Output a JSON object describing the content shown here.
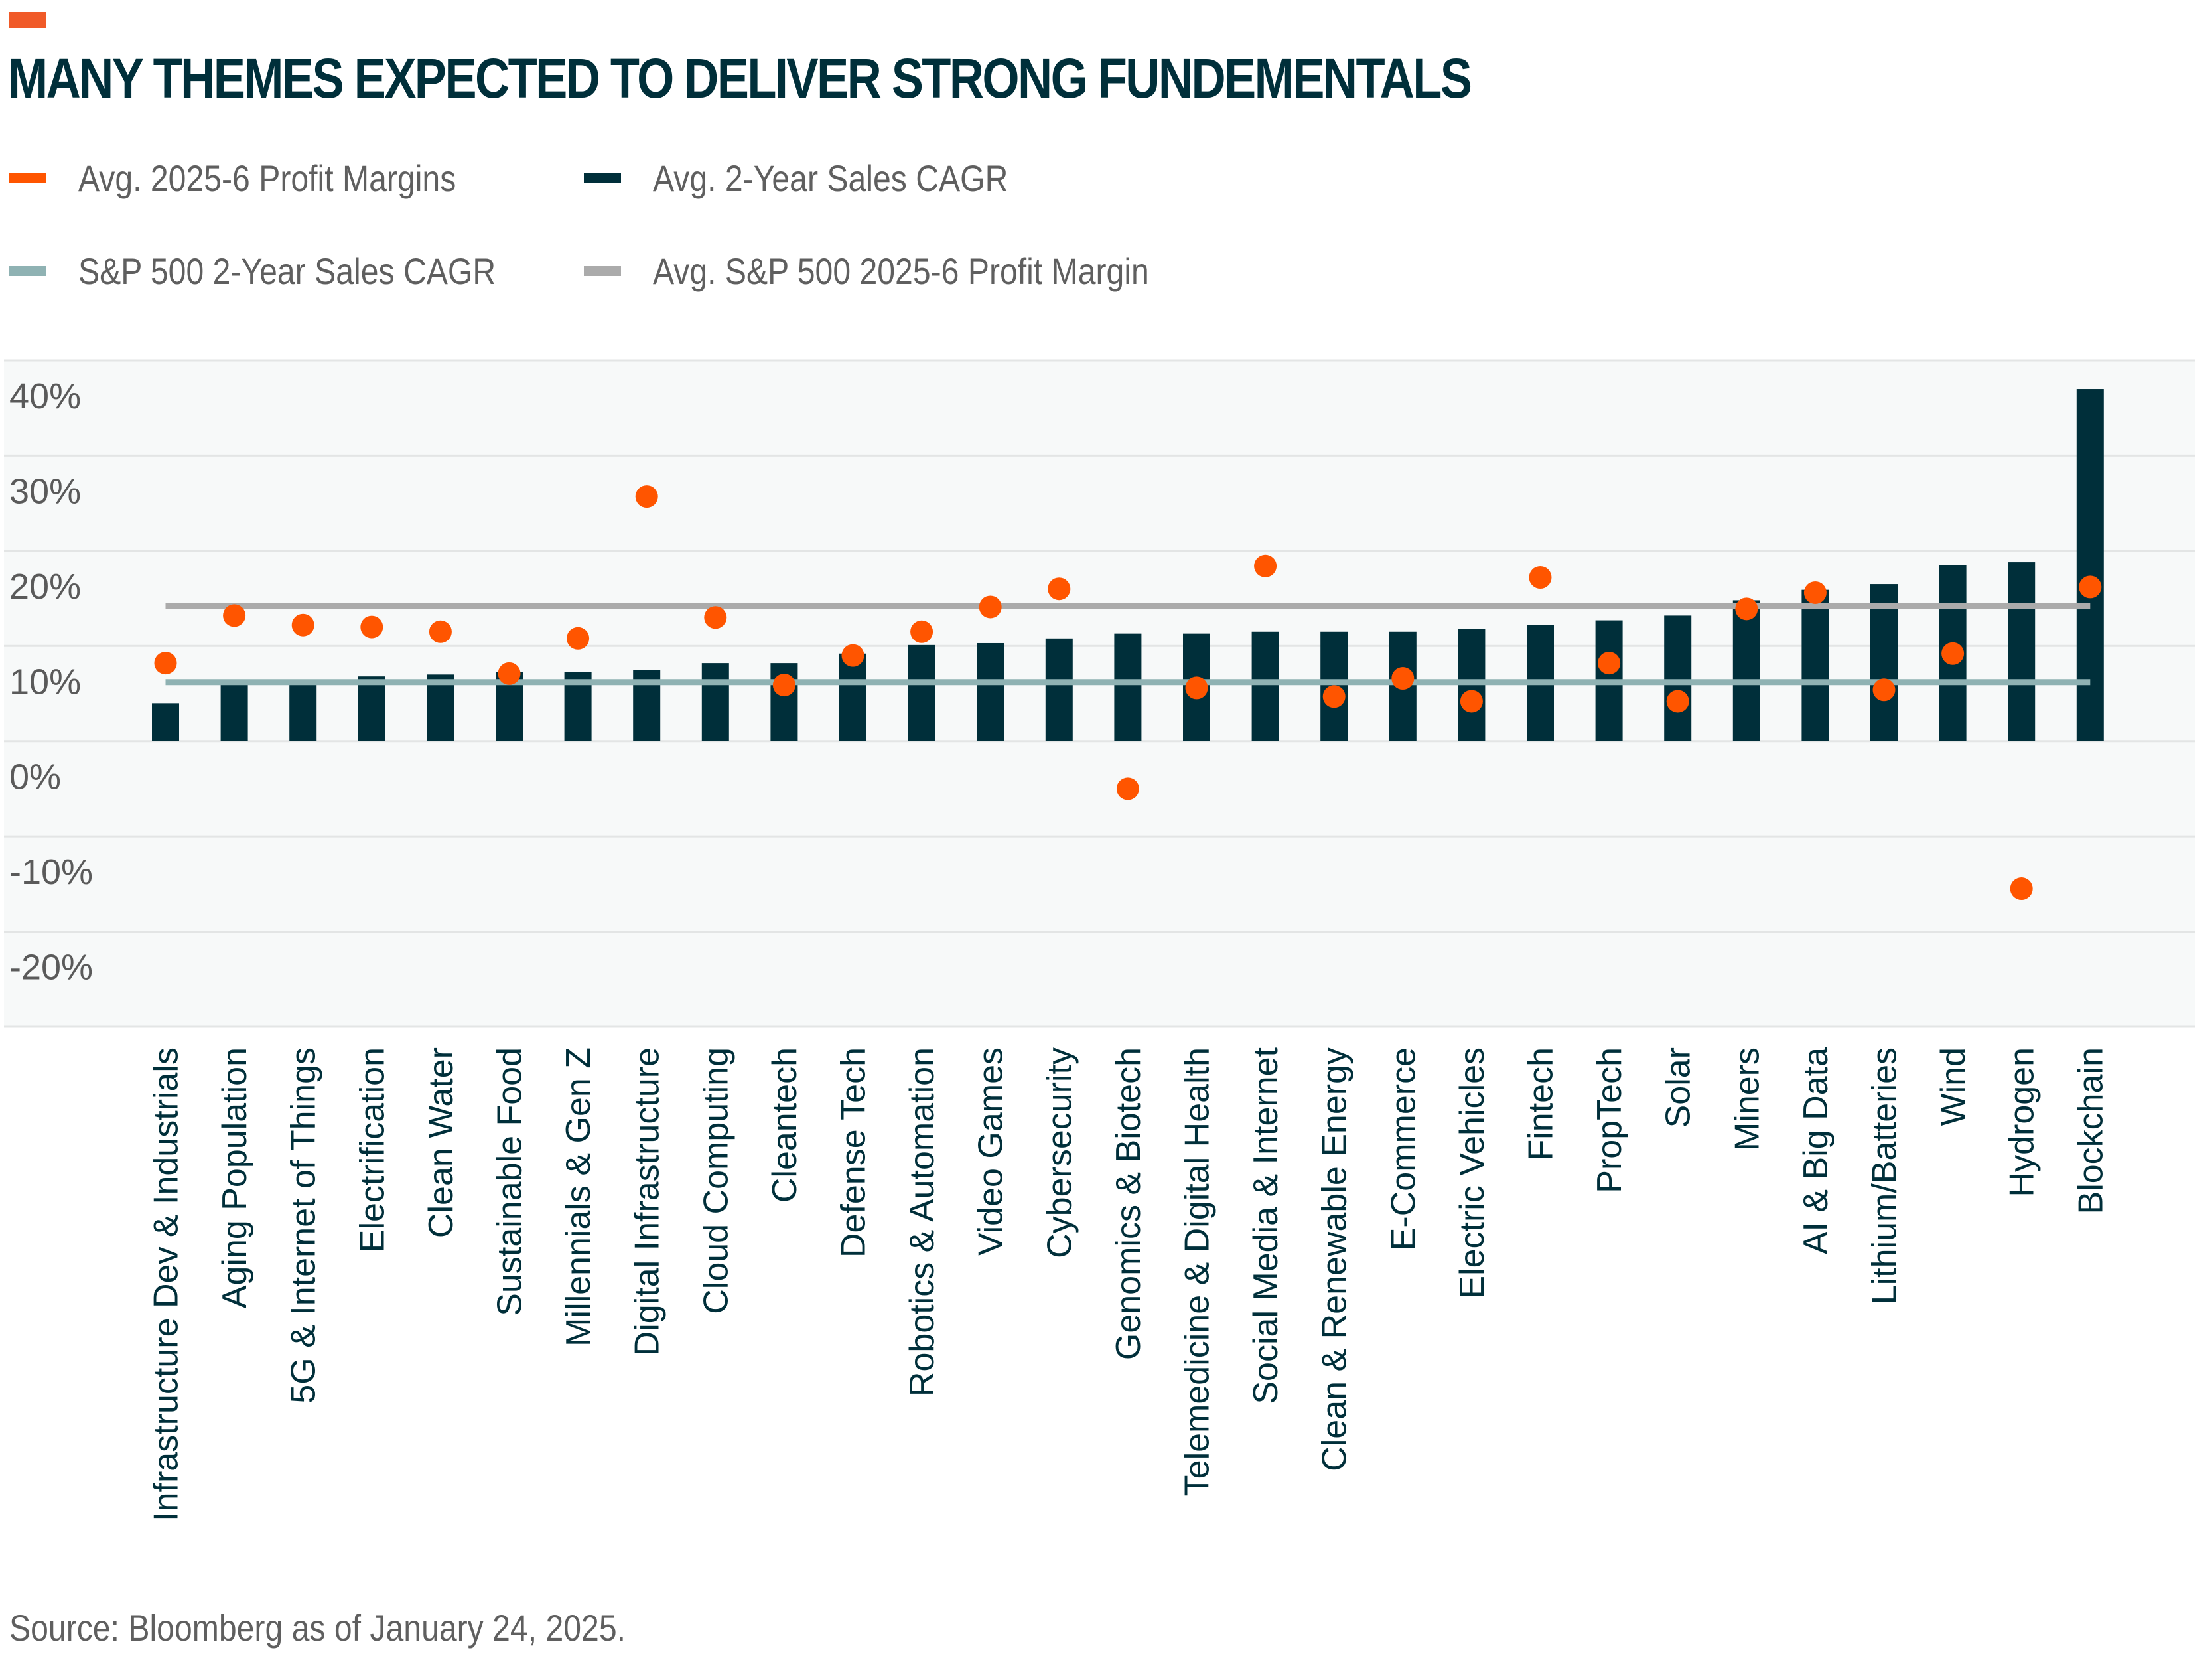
{
  "header": {
    "title": "MANY THEMES EXPECTED TO DELIVER STRONG FUNDEMENTALS"
  },
  "legend": [
    {
      "label": "Avg. 2025-6 Profit Margins",
      "color": "#FF5500",
      "kind": "dot"
    },
    {
      "label": "Avg. 2-Year Sales CAGR",
      "color": "#002F3A",
      "kind": "bar"
    },
    {
      "label": "S&P 500 2-Year Sales CAGR",
      "color": "#8FB2B3",
      "kind": "line"
    },
    {
      "label": "Avg. S&P 500 2025-6 Profit Margin",
      "color": "#ABABAB",
      "kind": "line"
    }
  ],
  "footer": {
    "source": "Source: Bloomberg as of January 24, 2025."
  },
  "colors": {
    "accent": "#F05A28",
    "title": "#002F3A",
    "bars": "#002F3A",
    "dots": "#FF5500",
    "sp500_sales_line": "#8FB2B3",
    "sp500_margin_line": "#ABABAB",
    "plot_background": "#F7F9F9",
    "gridline": "#E3E5E5",
    "axis_text": "#5A5A5A",
    "category_text": "#002F3A"
  },
  "chart_data": {
    "type": "bar",
    "title": "MANY THEMES EXPECTED TO DELIVER STRONG FUNDEMENTALS",
    "xlabel": "",
    "ylabel": "",
    "ylim": [
      -30,
      40
    ],
    "yticks": [
      40,
      30,
      20,
      10,
      0,
      -10,
      -20
    ],
    "ytick_labels": [
      "40%",
      "30%",
      "20%",
      "10%",
      "0%",
      "-10%",
      "-20%"
    ],
    "grid": true,
    "legend_position": "top-left",
    "categories": [
      "Infrastructure Dev & Industrials",
      "Aging Population",
      "5G & Internet of Things",
      "Electrification",
      "Clean Water",
      "Sustainable Food",
      "Millennials & Gen Z",
      "Digital Infrastructure",
      "Cloud Computing",
      "Cleantech",
      "Defense Tech",
      "Robotics & Automation",
      "Video Games",
      "Cybersecurity",
      "Genomics & Biotech",
      "Telemedicine & Digital Health",
      "Social Media & Internet",
      "Clean & Renewable Energy",
      "E-Commerce",
      "Electric Vehicles",
      "Fintech",
      "PropTech",
      "Solar",
      "Miners",
      "AI & Big Data",
      "Lithium/Batteries",
      "Wind",
      "Hydrogen",
      "Blockchain"
    ],
    "series": [
      {
        "name": "Avg. 2-Year Sales CAGR",
        "type": "bar",
        "values": [
          4.0,
          6.0,
          6.0,
          6.8,
          7.0,
          7.3,
          7.3,
          7.5,
          8.2,
          8.2,
          9.2,
          10.1,
          10.3,
          10.8,
          11.3,
          11.3,
          11.5,
          11.5,
          11.5,
          11.8,
          12.2,
          12.7,
          13.2,
          14.8,
          15.9,
          16.5,
          18.5,
          18.8,
          37.0
        ]
      },
      {
        "name": "Avg. 2025-6 Profit Margins",
        "type": "scatter",
        "values": [
          8.2,
          13.2,
          12.2,
          12.0,
          11.5,
          7.1,
          10.8,
          25.7,
          13.0,
          5.9,
          9.0,
          11.5,
          14.1,
          16.0,
          -5.0,
          5.6,
          18.4,
          4.7,
          6.6,
          4.2,
          17.2,
          8.2,
          4.2,
          13.9,
          15.6,
          5.4,
          9.2,
          -15.5,
          16.2
        ]
      },
      {
        "name": "S&P 500 2-Year Sales CAGR",
        "type": "hline",
        "value": 6.2
      },
      {
        "name": "Avg. S&P 500 2025-6 Profit Margin",
        "type": "hline",
        "value": 14.2
      }
    ]
  }
}
